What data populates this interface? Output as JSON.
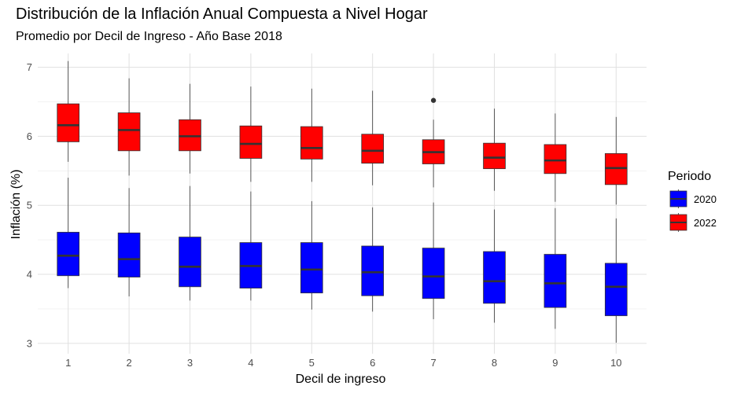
{
  "chart_data": {
    "type": "boxplot",
    "title": "Distribución de la Inflación Anual Compuesta a Nivel Hogar",
    "subtitle": "Promedio por Decil de Ingreso - Año Base 2018",
    "xlabel": "Decil de ingreso",
    "ylabel": "Inflación (%)",
    "categories": [
      "1",
      "2",
      "3",
      "4",
      "5",
      "6",
      "7",
      "8",
      "9",
      "10"
    ],
    "yticks": [
      "3",
      "4",
      "5",
      "6",
      "7"
    ],
    "ylim": [
      2.85,
      7.2
    ],
    "grid": true,
    "legend": {
      "title": "Periodo",
      "position": "right"
    },
    "series": [
      {
        "name": "2020",
        "color": "#0000FF",
        "boxes": [
          {
            "min": 3.8,
            "q1": 3.98,
            "median": 4.27,
            "q3": 4.61,
            "max": 5.4
          },
          {
            "min": 3.68,
            "q1": 3.96,
            "median": 4.22,
            "q3": 4.6,
            "max": 5.25
          },
          {
            "min": 3.62,
            "q1": 3.82,
            "median": 4.11,
            "q3": 4.54,
            "max": 5.28
          },
          {
            "min": 3.62,
            "q1": 3.8,
            "median": 4.12,
            "q3": 4.46,
            "max": 5.2
          },
          {
            "min": 3.49,
            "q1": 3.73,
            "median": 4.07,
            "q3": 4.46,
            "max": 5.06
          },
          {
            "min": 3.46,
            "q1": 3.69,
            "median": 4.03,
            "q3": 4.41,
            "max": 4.97
          },
          {
            "min": 3.35,
            "q1": 3.65,
            "median": 3.97,
            "q3": 4.38,
            "max": 5.04
          },
          {
            "min": 3.3,
            "q1": 3.58,
            "median": 3.9,
            "q3": 4.33,
            "max": 4.94
          },
          {
            "min": 3.21,
            "q1": 3.52,
            "median": 3.87,
            "q3": 4.29,
            "max": 4.96
          },
          {
            "min": 3.01,
            "q1": 3.4,
            "median": 3.82,
            "q3": 4.16,
            "max": 4.81
          }
        ],
        "outliers": [
          [],
          [],
          [],
          [],
          [],
          [],
          [],
          [],
          [],
          []
        ]
      },
      {
        "name": "2022",
        "color": "#FF0000",
        "boxes": [
          {
            "min": 5.63,
            "q1": 5.92,
            "median": 6.16,
            "q3": 6.47,
            "max": 7.09
          },
          {
            "min": 5.43,
            "q1": 5.79,
            "median": 6.09,
            "q3": 6.34,
            "max": 6.84
          },
          {
            "min": 5.46,
            "q1": 5.79,
            "median": 6.0,
            "q3": 6.24,
            "max": 6.76
          },
          {
            "min": 5.34,
            "q1": 5.68,
            "median": 5.89,
            "q3": 6.15,
            "max": 6.72
          },
          {
            "min": 5.34,
            "q1": 5.67,
            "median": 5.83,
            "q3": 6.14,
            "max": 6.69
          },
          {
            "min": 5.29,
            "q1": 5.61,
            "median": 5.79,
            "q3": 6.03,
            "max": 6.66
          },
          {
            "min": 5.26,
            "q1": 5.6,
            "median": 5.77,
            "q3": 5.95,
            "max": 6.24
          },
          {
            "min": 5.21,
            "q1": 5.53,
            "median": 5.69,
            "q3": 5.9,
            "max": 6.4
          },
          {
            "min": 5.05,
            "q1": 5.46,
            "median": 5.65,
            "q3": 5.88,
            "max": 6.33
          },
          {
            "min": 5.01,
            "q1": 5.3,
            "median": 5.54,
            "q3": 5.75,
            "max": 6.28
          }
        ],
        "outliers": [
          [],
          [],
          [],
          [],
          [],
          [],
          [
            6.52
          ],
          [],
          [],
          []
        ]
      }
    ]
  }
}
